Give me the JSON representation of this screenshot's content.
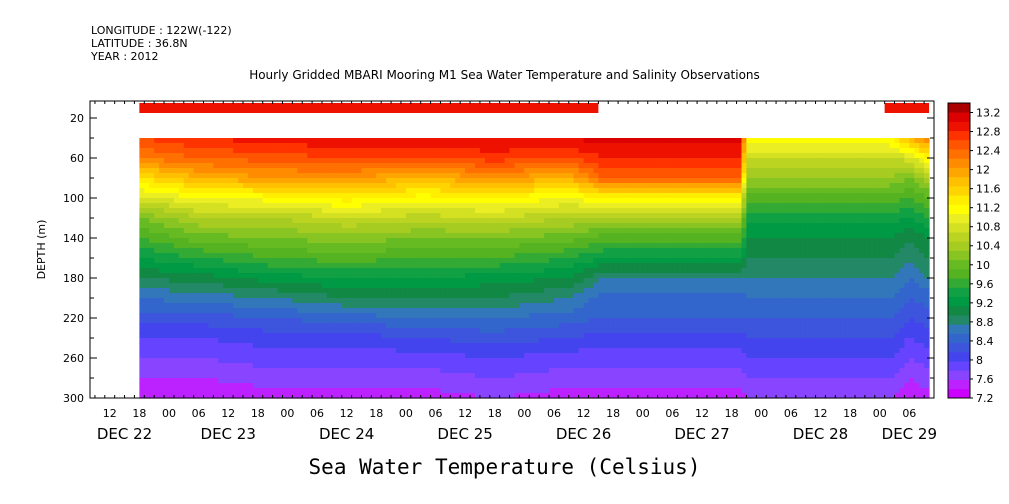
{
  "header": {
    "longitude": "LONGITUDE : 122W(-122)",
    "latitude": "LATITUDE : 36.8N",
    "year": "YEAR : 2012"
  },
  "chart_data": {
    "type": "heatmap",
    "title": "Hourly Gridded MBARI Mooring M1 Sea Water Temperature and Salinity Observations",
    "subtitle": "Sea Water Temperature (Celsius)",
    "xlabel": "",
    "ylabel": "DEPTH (m)",
    "x_ticks_hours": [
      "12",
      "18",
      "00",
      "06",
      "12",
      "18",
      "00",
      "06",
      "12",
      "18",
      "00",
      "06",
      "12",
      "18",
      "00",
      "06",
      "12",
      "18",
      "00",
      "06",
      "12",
      "18",
      "00",
      "06",
      "12",
      "18",
      "00",
      "06"
    ],
    "x_tick_hour_values": [
      12,
      18,
      24,
      30,
      36,
      42,
      48,
      54,
      60,
      66,
      72,
      78,
      84,
      90,
      96,
      102,
      108,
      114,
      120,
      126,
      132,
      138,
      144,
      150,
      156,
      162,
      168,
      174
    ],
    "x_day_labels": [
      {
        "label": "DEC 22",
        "hour": 15
      },
      {
        "label": "DEC 23",
        "hour": 36
      },
      {
        "label": "DEC 24",
        "hour": 60
      },
      {
        "label": "DEC 25",
        "hour": 84
      },
      {
        "label": "DEC 26",
        "hour": 108
      },
      {
        "label": "DEC 27",
        "hour": 132
      },
      {
        "label": "DEC 28",
        "hour": 156
      },
      {
        "label": "DEC 29",
        "hour": 174
      }
    ],
    "x_range_hours": [
      8,
      179
    ],
    "x_unit": "hours since DEC 22 00",
    "y_ticks": [
      20,
      60,
      100,
      140,
      180,
      220,
      260,
      300
    ],
    "ylim": [
      300,
      3
    ],
    "colorbar": {
      "levels": [
        7.2,
        7.4,
        7.6,
        7.8,
        8.0,
        8.2,
        8.4,
        8.6,
        8.8,
        9.0,
        9.2,
        9.4,
        9.6,
        9.8,
        10.0,
        10.2,
        10.4,
        10.6,
        10.8,
        11.0,
        11.2,
        11.4,
        11.6,
        11.8,
        12.0,
        12.2,
        12.4,
        12.6,
        12.8,
        13.0,
        13.2,
        13.4
      ],
      "labels": [
        "13.2",
        "12.8",
        "12.4",
        "12",
        "11.6",
        "11.2",
        "10.8",
        "10.4",
        "10",
        "9.6",
        "9.2",
        "8.8",
        "8.4",
        "8",
        "7.6",
        "7.2"
      ],
      "label_values": [
        13.2,
        12.8,
        12.4,
        12.0,
        11.6,
        11.2,
        10.8,
        10.4,
        10.0,
        9.6,
        9.2,
        8.8,
        8.4,
        8.0,
        7.6,
        7.2
      ],
      "colors": [
        "#cc00ff",
        "#bb22ff",
        "#8844ff",
        "#6644ff",
        "#4444ee",
        "#3d55dd",
        "#3366cc",
        "#3377bb",
        "#228866",
        "#118844",
        "#009944",
        "#11a044",
        "#33aa33",
        "#55b322",
        "#66bb22",
        "#88c422",
        "#a6cc22",
        "#bbd422",
        "#d4e022",
        "#eaee22",
        "#ffff00",
        "#ffee00",
        "#ffd400",
        "#ffc000",
        "#ffa500",
        "#ff8c00",
        "#ff7000",
        "#ff5500",
        "#ff3300",
        "#ee1100",
        "#dd0000",
        "#aa0000"
      ]
    },
    "surface_sensor": {
      "depth_m": 10,
      "segments": [
        {
          "start_hour": 18,
          "end_hour": 111
        },
        {
          "start_hour": 169,
          "end_hour": 178
        }
      ],
      "value": 13.2
    },
    "profile": {
      "start_hour": 18,
      "end_hour": 178,
      "top_depth_m": 40,
      "bottom_depth_m": 300,
      "depth_levels_m": [
        40,
        60,
        80,
        100,
        120,
        140,
        160,
        180,
        200,
        220,
        240,
        260,
        280,
        300
      ],
      "series": [
        {
          "time_hour": 18,
          "values": [
            12.8,
            12.4,
            11.6,
            10.9,
            10.2,
            9.8,
            9.4,
            9.0,
            8.6,
            8.3,
            8.0,
            7.8,
            7.6,
            7.5
          ]
        },
        {
          "time_hour": 30,
          "values": [
            13.0,
            12.6,
            12.0,
            11.2,
            10.6,
            10.1,
            9.6,
            9.1,
            8.7,
            8.3,
            8.0,
            7.8,
            7.6,
            7.4
          ]
        },
        {
          "time_hour": 45,
          "values": [
            13.1,
            12.7,
            12.2,
            11.3,
            10.6,
            10.2,
            9.8,
            9.3,
            8.8,
            8.4,
            8.1,
            7.9,
            7.7,
            7.5
          ]
        },
        {
          "time_hour": 60,
          "values": [
            13.2,
            12.8,
            12.2,
            11.5,
            10.8,
            10.3,
            9.9,
            9.4,
            9.0,
            8.5,
            8.1,
            7.9,
            7.7,
            7.5
          ]
        },
        {
          "time_hour": 75,
          "values": [
            13.2,
            12.8,
            12.0,
            11.3,
            10.7,
            10.2,
            9.8,
            9.4,
            9.0,
            8.6,
            8.2,
            7.9,
            7.7,
            7.5
          ]
        },
        {
          "time_hour": 90,
          "values": [
            13.2,
            12.9,
            12.2,
            11.4,
            10.8,
            10.2,
            9.8,
            9.3,
            9.0,
            8.6,
            8.3,
            8.0,
            7.8,
            7.6
          ]
        },
        {
          "time_hour": 105,
          "values": [
            13.2,
            12.8,
            12.0,
            11.2,
            10.6,
            10.1,
            9.6,
            9.2,
            8.8,
            8.5,
            8.2,
            7.9,
            7.7,
            7.5
          ]
        },
        {
          "time_hour": 112,
          "values": [
            13.3,
            13.0,
            12.6,
            11.4,
            10.5,
            9.9,
            9.4,
            8.8,
            8.5,
            8.4,
            8.1,
            7.9,
            7.7,
            7.5
          ]
        },
        {
          "time_hour": 140,
          "values": [
            13.3,
            13.0,
            12.6,
            11.4,
            10.5,
            9.9,
            9.4,
            8.8,
            8.5,
            8.4,
            8.1,
            7.9,
            7.7,
            7.5
          ]
        },
        {
          "time_hour": 141,
          "values": [
            11.4,
            10.8,
            10.4,
            9.9,
            9.5,
            9.2,
            9.0,
            8.8,
            8.6,
            8.4,
            8.2,
            8.0,
            7.8,
            7.6
          ]
        },
        {
          "time_hour": 170,
          "values": [
            11.4,
            10.8,
            10.4,
            9.9,
            9.5,
            9.2,
            9.0,
            8.8,
            8.6,
            8.4,
            8.2,
            8.0,
            7.8,
            7.6
          ]
        },
        {
          "time_hour": 174,
          "values": [
            12.0,
            10.9,
            10.2,
            9.8,
            9.4,
            9.0,
            8.8,
            8.6,
            8.4,
            8.2,
            8.0,
            7.8,
            7.6,
            7.5
          ]
        },
        {
          "time_hour": 178,
          "values": [
            12.4,
            11.4,
            10.6,
            10.0,
            9.6,
            9.2,
            9.0,
            8.8,
            8.5,
            8.3,
            8.1,
            7.9,
            7.7,
            7.5
          ]
        }
      ]
    }
  }
}
